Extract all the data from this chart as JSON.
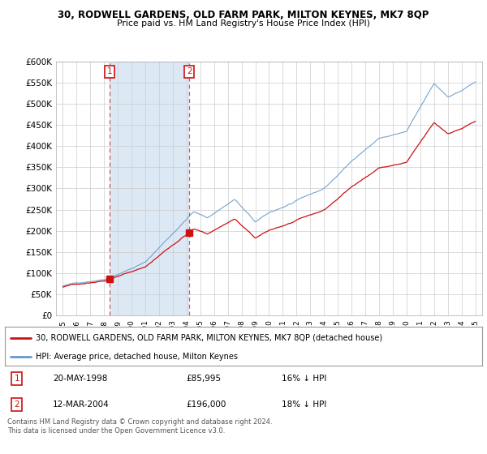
{
  "title1": "30, RODWELL GARDENS, OLD FARM PARK, MILTON KEYNES, MK7 8QP",
  "title2": "Price paid vs. HM Land Registry's House Price Index (HPI)",
  "ytick_values": [
    0,
    50000,
    100000,
    150000,
    200000,
    250000,
    300000,
    350000,
    400000,
    450000,
    500000,
    550000,
    600000
  ],
  "hpi_color": "#6699cc",
  "price_color": "#cc1111",
  "marker_color": "#cc1111",
  "purchase1": {
    "date": "20-MAY-1998",
    "price": 85995,
    "label": "1",
    "pct": "16% ↓ HPI",
    "x_year": 1998.38
  },
  "purchase2": {
    "date": "12-MAR-2004",
    "price": 196000,
    "label": "2",
    "pct": "18% ↓ HPI",
    "x_year": 2004.2
  },
  "legend_line1": "30, RODWELL GARDENS, OLD FARM PARK, MILTON KEYNES, MK7 8QP (detached house)",
  "legend_line2": "HPI: Average price, detached house, Milton Keynes",
  "footnote": "Contains HM Land Registry data © Crown copyright and database right 2024.\nThis data is licensed under the Open Government Licence v3.0.",
  "xmin": 1994.5,
  "xmax": 2025.5,
  "ymin": 0,
  "ymax": 600000,
  "background_chart": "#ffffff",
  "shade_color": "#dde8f5",
  "background_fig": "#ffffff",
  "grid_color": "#cccccc"
}
